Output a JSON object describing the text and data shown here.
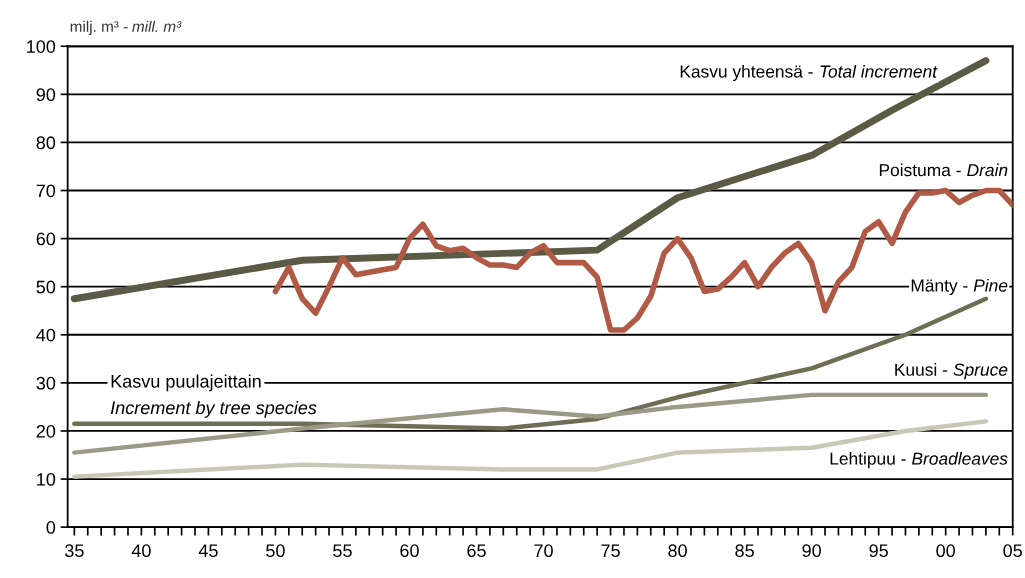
{
  "chart_data": {
    "type": "line",
    "ylabel": "milj. m³ - mill. m³",
    "xlim": [
      1934.5,
      2005
    ],
    "ylim": [
      0,
      100
    ],
    "yticks": [
      0,
      10,
      20,
      30,
      40,
      50,
      60,
      70,
      80,
      90,
      100
    ],
    "xticks": [
      {
        "value": 1935,
        "label": "35"
      },
      {
        "value": 1936,
        "label": null
      },
      {
        "value": 1937,
        "label": null
      },
      {
        "value": 1938,
        "label": null
      },
      {
        "value": 1939,
        "label": null
      },
      {
        "value": 1940,
        "label": "40"
      },
      {
        "value": 1941,
        "label": null
      },
      {
        "value": 1942,
        "label": null
      },
      {
        "value": 1943,
        "label": null
      },
      {
        "value": 1944,
        "label": null
      },
      {
        "value": 1945,
        "label": "45"
      },
      {
        "value": 1946,
        "label": null
      },
      {
        "value": 1947,
        "label": null
      },
      {
        "value": 1948,
        "label": null
      },
      {
        "value": 1949,
        "label": null
      },
      {
        "value": 1950,
        "label": "50"
      },
      {
        "value": 1951,
        "label": null
      },
      {
        "value": 1952,
        "label": null
      },
      {
        "value": 1953,
        "label": null
      },
      {
        "value": 1954,
        "label": null
      },
      {
        "value": 1955,
        "label": "55"
      },
      {
        "value": 1956,
        "label": null
      },
      {
        "value": 1957,
        "label": null
      },
      {
        "value": 1958,
        "label": null
      },
      {
        "value": 1959,
        "label": null
      },
      {
        "value": 1960,
        "label": "60"
      },
      {
        "value": 1961,
        "label": null
      },
      {
        "value": 1962,
        "label": null
      },
      {
        "value": 1963,
        "label": null
      },
      {
        "value": 1964,
        "label": null
      },
      {
        "value": 1965,
        "label": "65"
      },
      {
        "value": 1966,
        "label": null
      },
      {
        "value": 1967,
        "label": null
      },
      {
        "value": 1968,
        "label": null
      },
      {
        "value": 1969,
        "label": null
      },
      {
        "value": 1970,
        "label": "70"
      },
      {
        "value": 1971,
        "label": null
      },
      {
        "value": 1972,
        "label": null
      },
      {
        "value": 1973,
        "label": null
      },
      {
        "value": 1974,
        "label": null
      },
      {
        "value": 1975,
        "label": "75"
      },
      {
        "value": 1976,
        "label": null
      },
      {
        "value": 1977,
        "label": null
      },
      {
        "value": 1978,
        "label": null
      },
      {
        "value": 1979,
        "label": null
      },
      {
        "value": 1980,
        "label": "80"
      },
      {
        "value": 1981,
        "label": null
      },
      {
        "value": 1982,
        "label": null
      },
      {
        "value": 1983,
        "label": null
      },
      {
        "value": 1984,
        "label": null
      },
      {
        "value": 1985,
        "label": "85"
      },
      {
        "value": 1986,
        "label": null
      },
      {
        "value": 1987,
        "label": null
      },
      {
        "value": 1988,
        "label": null
      },
      {
        "value": 1989,
        "label": null
      },
      {
        "value": 1990,
        "label": "90"
      },
      {
        "value": 1991,
        "label": null
      },
      {
        "value": 1992,
        "label": null
      },
      {
        "value": 1993,
        "label": null
      },
      {
        "value": 1994,
        "label": null
      },
      {
        "value": 1995,
        "label": "95"
      },
      {
        "value": 1996,
        "label": null
      },
      {
        "value": 1997,
        "label": null
      },
      {
        "value": 1998,
        "label": null
      },
      {
        "value": 1999,
        "label": null
      },
      {
        "value": 2000,
        "label": "00"
      },
      {
        "value": 2001,
        "label": null
      },
      {
        "value": 2002,
        "label": null
      },
      {
        "value": 2003,
        "label": null
      },
      {
        "value": 2004,
        "label": null
      },
      {
        "value": 2005,
        "label": "05"
      }
    ],
    "grid": "y",
    "legend": false,
    "marker": "none",
    "line_style": "solid",
    "annotations": [
      "Kasvu puulajeittain\nIncrement by tree species"
    ],
    "series": [
      {
        "name": "Kasvu yhteensä - Total increment",
        "color": "#5a5a45",
        "x": [
          1935,
          1952,
          1974,
          1980,
          1990,
          1996,
          2003
        ],
        "values": [
          47.5,
          55.5,
          57.6,
          68.5,
          77.3,
          86.7,
          97
        ]
      },
      {
        "name": "Poistuma - Drain",
        "color": "#b05a45",
        "x": [
          1950,
          1951,
          1952,
          1953,
          1954,
          1955,
          1956,
          1957,
          1958,
          1959,
          1960,
          1961,
          1962,
          1963,
          1964,
          1965,
          1966,
          1967,
          1968,
          1969,
          1970,
          1971,
          1972,
          1973,
          1974,
          1975,
          1976,
          1977,
          1978,
          1979,
          1980,
          1981,
          1982,
          1983,
          1984,
          1985,
          1986,
          1987,
          1988,
          1989,
          1990,
          1991,
          1992,
          1993,
          1994,
          1995,
          1996,
          1997,
          1998,
          1999,
          2000,
          2001,
          2002,
          2003,
          2004,
          2005
        ],
        "values": [
          49,
          54,
          47.5,
          44.5,
          50,
          56,
          52.5,
          53,
          53.5,
          54,
          60,
          63,
          58.5,
          57.5,
          58,
          56,
          54.5,
          54.5,
          54,
          57,
          58.5,
          55,
          55,
          55,
          52,
          41,
          41,
          43.5,
          48,
          57,
          60,
          56,
          49,
          49.5,
          52,
          55,
          50,
          54,
          57,
          59,
          55,
          45,
          51,
          54,
          61.5,
          63.5,
          59,
          65.5,
          69.5,
          69.5,
          70,
          67.5,
          69,
          70,
          70,
          67
        ]
      },
      {
        "name": "Mänty - Pine",
        "color": "#6e6e55",
        "x": [
          1935,
          1952,
          1967,
          1974,
          1980,
          1990,
          1997,
          2003
        ],
        "values": [
          21.5,
          21.5,
          20.5,
          22.5,
          27,
          33,
          40,
          47.5
        ]
      },
      {
        "name": "Kuusi - Spruce",
        "color": "#9a9a85",
        "x": [
          1935,
          1952,
          1967,
          1974,
          1980,
          1990,
          1997,
          2003
        ],
        "values": [
          15.5,
          20.5,
          24.5,
          23,
          25,
          27.5,
          27.5,
          27.5
        ]
      },
      {
        "name": "Lehtipuu - Broadleaves",
        "color": "#c8c8b4",
        "x": [
          1935,
          1952,
          1967,
          1974,
          1980,
          1990,
          1997,
          2003
        ],
        "values": [
          10.5,
          13,
          12,
          12,
          15.5,
          16.5,
          20,
          22
        ]
      }
    ]
  }
}
